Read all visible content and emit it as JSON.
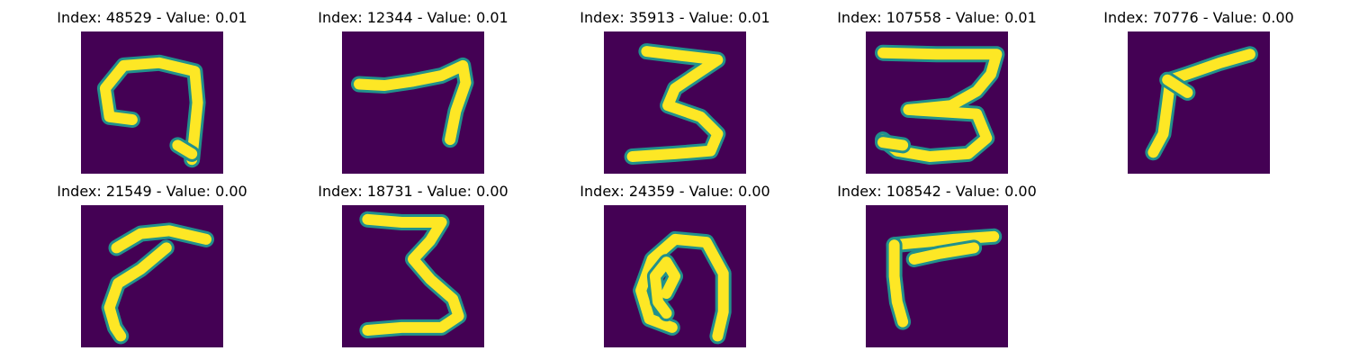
{
  "background_color": "#440154",
  "stroke_color": "#fde725",
  "edge_color": "#21918c",
  "images": [
    {
      "title": "Index: 48529 - Value: 0.01",
      "glyph": "loop-hook",
      "strokes": [
        [
          [
            0.36,
            0.62
          ],
          [
            0.2,
            0.6
          ],
          [
            0.17,
            0.4
          ],
          [
            0.3,
            0.24
          ],
          [
            0.55,
            0.22
          ],
          [
            0.8,
            0.28
          ],
          [
            0.82,
            0.5
          ],
          [
            0.8,
            0.7
          ],
          [
            0.78,
            0.9
          ]
        ],
        [
          [
            0.68,
            0.8
          ],
          [
            0.78,
            0.86
          ]
        ]
      ]
    },
    {
      "title": "Index: 12344 - Value: 0.01",
      "glyph": "seven-shape",
      "strokes": [
        [
          [
            0.12,
            0.37
          ],
          [
            0.3,
            0.38
          ],
          [
            0.5,
            0.35
          ],
          [
            0.7,
            0.31
          ],
          [
            0.85,
            0.24
          ],
          [
            0.87,
            0.36
          ],
          [
            0.8,
            0.56
          ],
          [
            0.76,
            0.76
          ]
        ]
      ]
    },
    {
      "title": "Index: 35913 - Value: 0.01",
      "glyph": "three-shape",
      "strokes": [
        [
          [
            0.3,
            0.14
          ],
          [
            0.55,
            0.17
          ],
          [
            0.8,
            0.2
          ],
          [
            0.65,
            0.3
          ],
          [
            0.5,
            0.4
          ],
          [
            0.45,
            0.52
          ],
          [
            0.68,
            0.6
          ],
          [
            0.8,
            0.72
          ],
          [
            0.75,
            0.84
          ],
          [
            0.5,
            0.86
          ],
          [
            0.2,
            0.88
          ]
        ]
      ]
    },
    {
      "title": "Index: 107558 - Value: 0.01",
      "glyph": "three-shape-wide",
      "strokes": [
        [
          [
            0.12,
            0.15
          ],
          [
            0.5,
            0.16
          ],
          [
            0.92,
            0.16
          ],
          [
            0.88,
            0.3
          ],
          [
            0.78,
            0.42
          ],
          [
            0.6,
            0.52
          ],
          [
            0.3,
            0.55
          ],
          [
            0.78,
            0.58
          ],
          [
            0.85,
            0.75
          ],
          [
            0.72,
            0.86
          ],
          [
            0.45,
            0.88
          ],
          [
            0.22,
            0.84
          ],
          [
            0.12,
            0.76
          ]
        ],
        [
          [
            0.12,
            0.78
          ],
          [
            0.26,
            0.8
          ]
        ]
      ]
    },
    {
      "title": "Index: 70776 - Value: 0.00",
      "glyph": "diagonal-seven",
      "strokes": [
        [
          [
            0.86,
            0.16
          ],
          [
            0.65,
            0.22
          ],
          [
            0.42,
            0.3
          ],
          [
            0.3,
            0.34
          ],
          [
            0.28,
            0.5
          ],
          [
            0.25,
            0.72
          ],
          [
            0.18,
            0.85
          ]
        ],
        [
          [
            0.28,
            0.34
          ],
          [
            0.42,
            0.43
          ]
        ]
      ]
    },
    {
      "title": "Index: 21549 - Value: 0.00",
      "glyph": "curved-slash",
      "strokes": [
        [
          [
            0.25,
            0.3
          ],
          [
            0.42,
            0.2
          ],
          [
            0.62,
            0.18
          ],
          [
            0.88,
            0.24
          ]
        ],
        [
          [
            0.6,
            0.3
          ],
          [
            0.42,
            0.45
          ],
          [
            0.26,
            0.55
          ],
          [
            0.2,
            0.72
          ],
          [
            0.24,
            0.86
          ],
          [
            0.28,
            0.92
          ]
        ]
      ]
    },
    {
      "title": "Index: 18731 - Value: 0.00",
      "glyph": "three-shape",
      "strokes": [
        [
          [
            0.18,
            0.1
          ],
          [
            0.42,
            0.12
          ],
          [
            0.7,
            0.12
          ],
          [
            0.62,
            0.25
          ],
          [
            0.5,
            0.38
          ],
          [
            0.62,
            0.52
          ],
          [
            0.78,
            0.66
          ],
          [
            0.82,
            0.78
          ],
          [
            0.7,
            0.86
          ],
          [
            0.42,
            0.86
          ],
          [
            0.18,
            0.88
          ]
        ]
      ]
    },
    {
      "title": "Index: 24359 - Value: 0.00",
      "glyph": "loop-digit",
      "strokes": [
        [
          [
            0.48,
            0.86
          ],
          [
            0.32,
            0.8
          ],
          [
            0.26,
            0.6
          ],
          [
            0.34,
            0.38
          ],
          [
            0.5,
            0.24
          ],
          [
            0.72,
            0.26
          ],
          [
            0.84,
            0.48
          ],
          [
            0.84,
            0.75
          ],
          [
            0.8,
            0.92
          ]
        ],
        [
          [
            0.44,
            0.62
          ],
          [
            0.5,
            0.5
          ],
          [
            0.44,
            0.4
          ],
          [
            0.36,
            0.5
          ],
          [
            0.38,
            0.68
          ],
          [
            0.44,
            0.76
          ]
        ]
      ]
    },
    {
      "title": "Index: 108542 - Value: 0.00",
      "glyph": "seven-flag",
      "strokes": [
        [
          [
            0.2,
            0.28
          ],
          [
            0.4,
            0.26
          ],
          [
            0.62,
            0.24
          ],
          [
            0.9,
            0.22
          ]
        ],
        [
          [
            0.2,
            0.28
          ],
          [
            0.2,
            0.5
          ],
          [
            0.22,
            0.68
          ],
          [
            0.26,
            0.82
          ]
        ],
        [
          [
            0.34,
            0.38
          ],
          [
            0.52,
            0.34
          ],
          [
            0.76,
            0.3
          ]
        ]
      ]
    }
  ]
}
